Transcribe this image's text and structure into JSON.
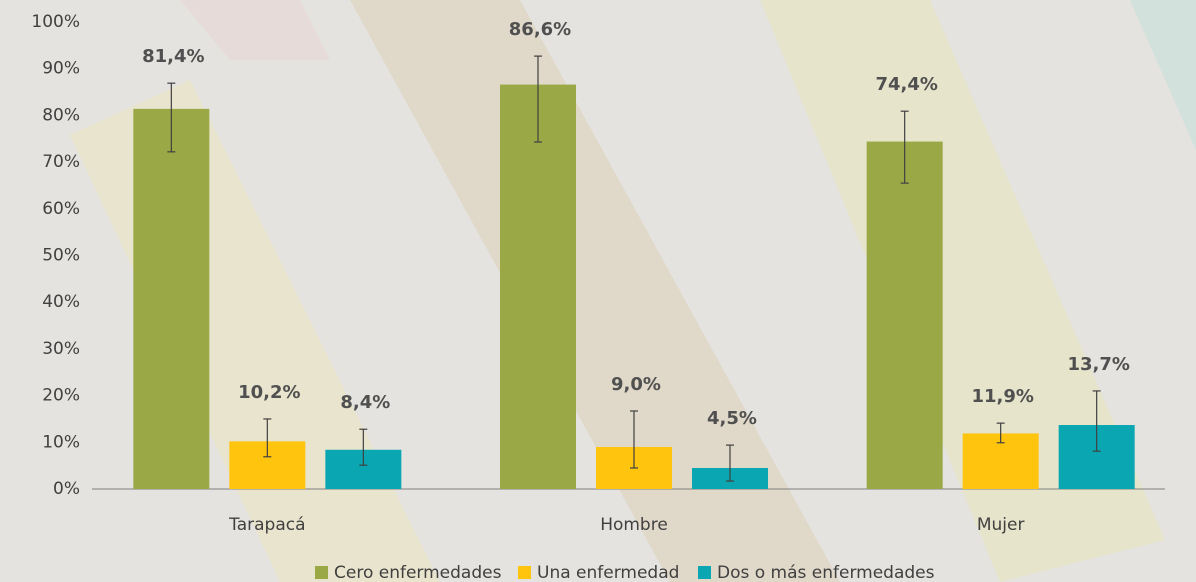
{
  "chart_data": {
    "type": "bar",
    "categories": [
      "Tarapacá",
      "Hombre",
      "Mujer"
    ],
    "series": [
      {
        "name": "Cero enfermedades",
        "color": "#9aa846",
        "values": [
          81.4,
          86.6,
          74.4
        ],
        "value_labels": [
          "81,4%",
          "86,6%",
          "74,4%"
        ],
        "ci_low": [
          72.2,
          74.3,
          65.5
        ],
        "ci_high": [
          86.9,
          92.7,
          80.9
        ]
      },
      {
        "name": "Una enfermedad",
        "color": "#fec40e",
        "values": [
          10.2,
          9.0,
          11.9
        ],
        "value_labels": [
          "10,2%",
          "9,0%",
          "11,9%"
        ],
        "ci_low": [
          6.9,
          4.5,
          9.9
        ],
        "ci_high": [
          15.0,
          16.7,
          14.1
        ]
      },
      {
        "name": "Dos o más enfermedades",
        "color": "#0aa7b3",
        "values": [
          8.4,
          4.5,
          13.7
        ],
        "value_labels": [
          "8,4%",
          "4,5%",
          "13,7%"
        ],
        "ci_low": [
          5.1,
          1.7,
          8.1
        ],
        "ci_high": [
          12.8,
          9.4,
          21.0
        ]
      }
    ],
    "ylim": [
      0,
      100
    ],
    "yticks": [
      {
        "value": 0,
        "label": "0%"
      },
      {
        "value": 10,
        "label": "10%"
      },
      {
        "value": 20,
        "label": "20%"
      },
      {
        "value": 30,
        "label": "30%"
      },
      {
        "value": 40,
        "label": "40%"
      },
      {
        "value": 50,
        "label": "50%"
      },
      {
        "value": 60,
        "label": "60%"
      },
      {
        "value": 70,
        "label": "70%"
      },
      {
        "value": 80,
        "label": "80%"
      },
      {
        "value": 90,
        "label": "90%"
      },
      {
        "value": 100,
        "label": "100%"
      }
    ],
    "legend": "bottom"
  }
}
